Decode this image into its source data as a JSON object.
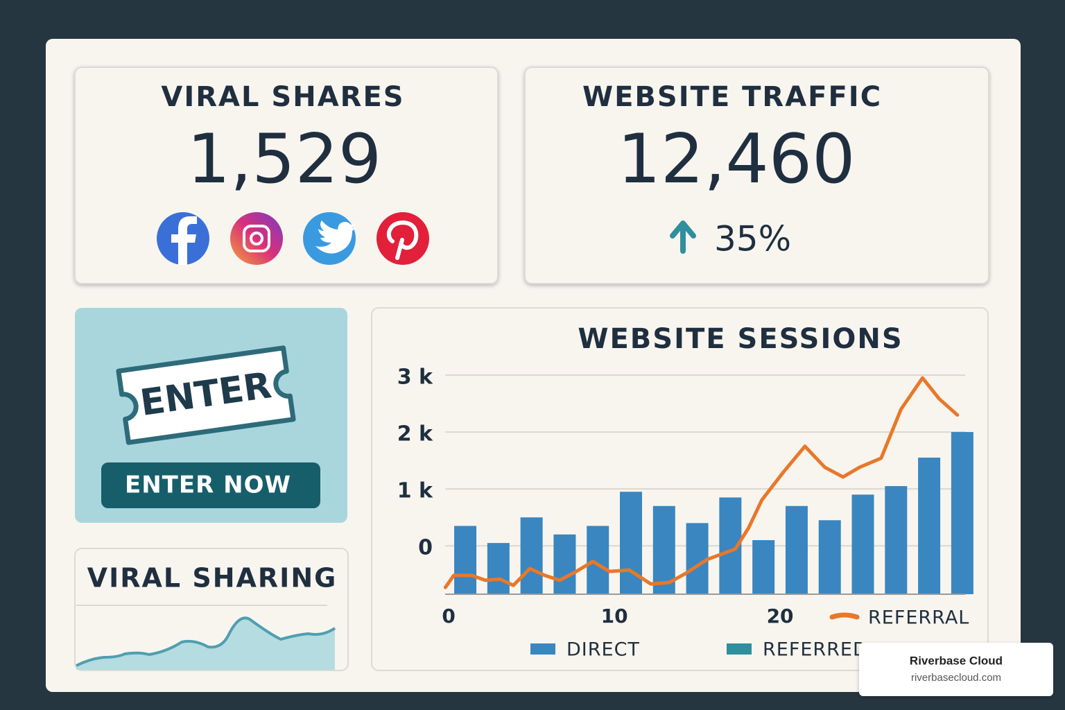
{
  "cards": [
    {
      "title": "VIRAL SHARES",
      "value": "1,529"
    },
    {
      "title": "WEBSITE TRAFFIC",
      "value": "12,460",
      "change": "35%"
    }
  ],
  "promo": {
    "ticket": "ENTER",
    "button": "ENTER NOW"
  },
  "viral_sharing": {
    "title": "VIRAL SHARING"
  },
  "chart_data": {
    "type": "combo",
    "title": "WEBSITE SESSIONS",
    "xlim": [
      -0.3,
      31.8
    ],
    "xticks": [
      0,
      10,
      20
    ],
    "ylim": [
      -850,
      3000
    ],
    "yticks": [
      {
        "value": 3000,
        "label": "3 k"
      },
      {
        "value": 2000,
        "label": "2 k"
      },
      {
        "value": 1000,
        "label": "1 k"
      },
      0
    ],
    "grid": true,
    "series": [
      {
        "name": "DIRECT",
        "type": "bar",
        "color": "#3a86c0",
        "x": [
          1,
          3,
          5,
          7,
          9,
          11,
          13,
          15,
          17,
          19,
          21,
          23,
          25,
          27,
          29,
          31
        ],
        "values": [
          350,
          50,
          500,
          200,
          350,
          950,
          700,
          400,
          850,
          100,
          700,
          450,
          900,
          1050,
          1550,
          2000
        ]
      },
      {
        "name": "REFERRAL",
        "type": "line",
        "color": "#e8782a",
        "x": [
          -0.2,
          0.3,
          1.4,
          2.2,
          3.1,
          3.9,
          4.9,
          5.8,
          6.7,
          7.7,
          8.7,
          9.7,
          10.9,
          12.2,
          13.3,
          14.3,
          15.6,
          17.3,
          18.1,
          18.9,
          20.2,
          21.5,
          22.7,
          23.8,
          24.8,
          26.1,
          27.3,
          28.6,
          29.6,
          30.7
        ],
        "values": [
          -730,
          -520,
          -520,
          -605,
          -585,
          -695,
          -400,
          -520,
          -605,
          -450,
          -275,
          -450,
          -425,
          -670,
          -645,
          -485,
          -240,
          -55,
          315,
          805,
          1295,
          1750,
          1380,
          1210,
          1380,
          1540,
          2400,
          2950,
          2585,
          2300
        ]
      },
      {
        "name": "REFERRED",
        "type": "bar",
        "color": "#2f8f9c",
        "x": [],
        "values": []
      }
    ]
  },
  "watermark": {
    "name": "Riverbase Cloud",
    "url": "riverbasecloud.com"
  }
}
